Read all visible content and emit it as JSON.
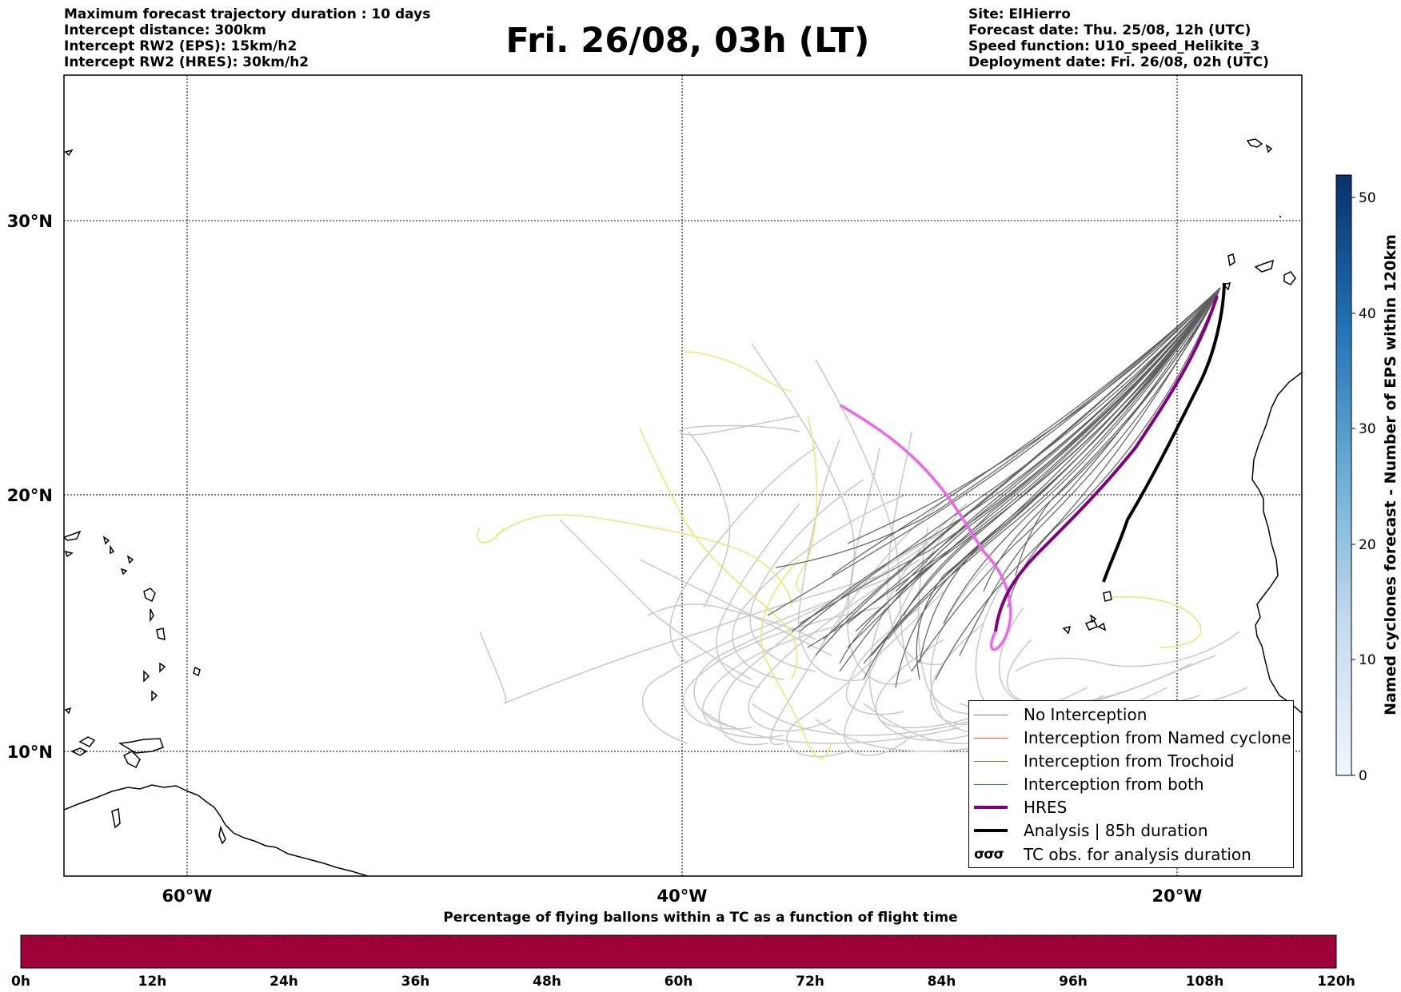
{
  "header": {
    "left_lines": [
      "Maximum forecast trajectory duration : 10 days",
      "Intercept distance: 300km",
      "Intercept RW2 (EPS):  15km/h2",
      "Intercept RW2 (HRES): 30km/h2"
    ],
    "title": "Fri. 26/08, 03h (LT)",
    "right_lines": [
      "Site: ElHierro",
      "Forecast date: Thu. 25/08, 12h (UTC)",
      "Speed function: U10_speed_Helikite_3",
      "Deployment date: Fri. 26/08, 02h (UTC)"
    ]
  },
  "map": {
    "lon_range": [
      -65,
      15
    ],
    "lat_range": [
      5,
      35
    ],
    "lon_ticks": [
      "60°W",
      "40°W",
      "20°W"
    ],
    "lat_ticks": [
      "30°N",
      "20°N",
      "10°N"
    ]
  },
  "legend": {
    "items": [
      {
        "label": "No Interception",
        "color": "#808080"
      },
      {
        "label": "Interception from Named cyclone",
        "color": "#ff5a1e"
      },
      {
        "label": "Interception from Trochoid",
        "color": "#808020"
      },
      {
        "label": "Interception from both",
        "color": "#2e8b2e"
      },
      {
        "label": "HRES",
        "color": "#800080"
      },
      {
        "label": "Analysis | 85h duration",
        "color": "#000000"
      },
      {
        "label": "TC obs. for analysis duration",
        "symbol": "σσσ"
      }
    ]
  },
  "colorbar_vertical": {
    "label": "Named cyclones forecast - Number of EPS within 120km",
    "ticks": [
      "0",
      "10",
      "20",
      "30",
      "40",
      "50"
    ]
  },
  "colorbar_horizontal": {
    "title": "Percentage of flying ballons within a TC as a function of flight time",
    "ticks": [
      "0h",
      "12h",
      "24h",
      "36h",
      "48h",
      "60h",
      "72h",
      "84h",
      "96h",
      "108h",
      "120h"
    ],
    "fill_color": "#9e003a"
  }
}
